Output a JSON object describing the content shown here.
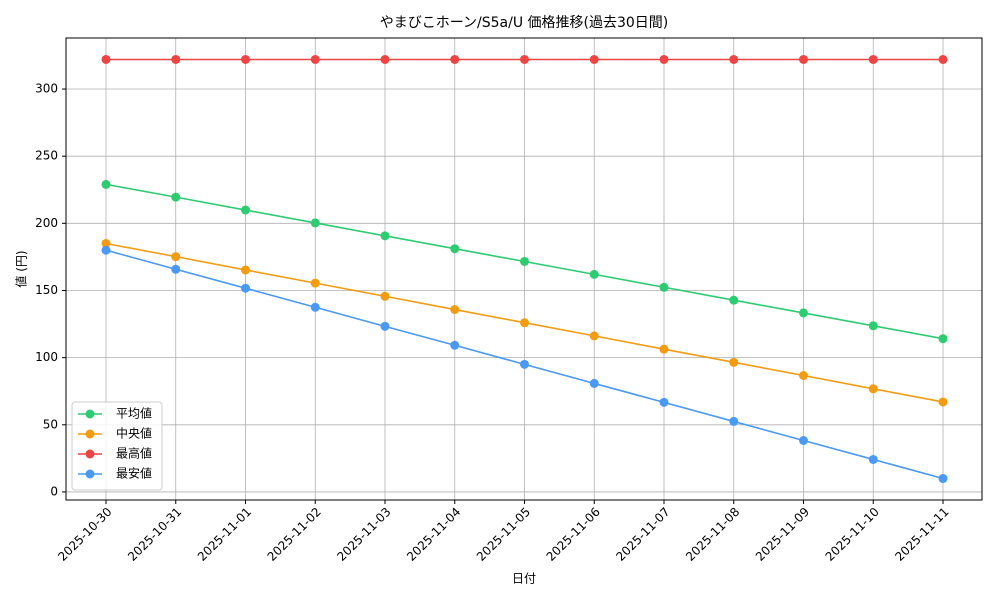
{
  "chart_data": {
    "type": "line",
    "title": "やまびこホーン/S5a/U 価格推移(過去30日間)",
    "x_label": "日付",
    "y_label": "値 (円)",
    "categories": [
      "2025-10-30",
      "2025-10-31",
      "2025-11-01",
      "2025-11-02",
      "2025-11-03",
      "2025-11-04",
      "2025-11-05",
      "2025-11-06",
      "2025-11-07",
      "2025-11-08",
      "2025-11-09",
      "2025-11-10",
      "2025-11-11"
    ],
    "series": [
      {
        "name": "平均値",
        "color": "#2ecc71",
        "values": [
          229,
          219.5,
          209.9,
          200.3,
          190.7,
          181.1,
          171.6,
          162.0,
          152.4,
          142.8,
          133.3,
          123.7,
          114.1
        ]
      },
      {
        "name": "中央値",
        "color": "#f39c12",
        "values": [
          185,
          175.2,
          165.3,
          155.5,
          145.7,
          135.8,
          126.0,
          116.2,
          106.3,
          96.5,
          86.7,
          76.8,
          67.0
        ]
      },
      {
        "name": "最高値",
        "color": "#ef4444",
        "values": [
          322,
          322,
          322,
          322,
          322,
          322,
          322,
          322,
          322,
          322,
          322,
          322,
          322
        ]
      },
      {
        "name": "最安値",
        "color": "#4a9af5",
        "values": [
          180,
          165.8,
          151.7,
          137.5,
          123.3,
          109.2,
          95.0,
          80.8,
          66.7,
          52.5,
          38.3,
          24.2,
          10.0
        ]
      }
    ],
    "ylim": [
      -6,
      338
    ],
    "yticks": [
      0,
      50,
      100,
      150,
      200,
      250,
      300
    ],
    "grid": true,
    "legend": "lower left"
  }
}
